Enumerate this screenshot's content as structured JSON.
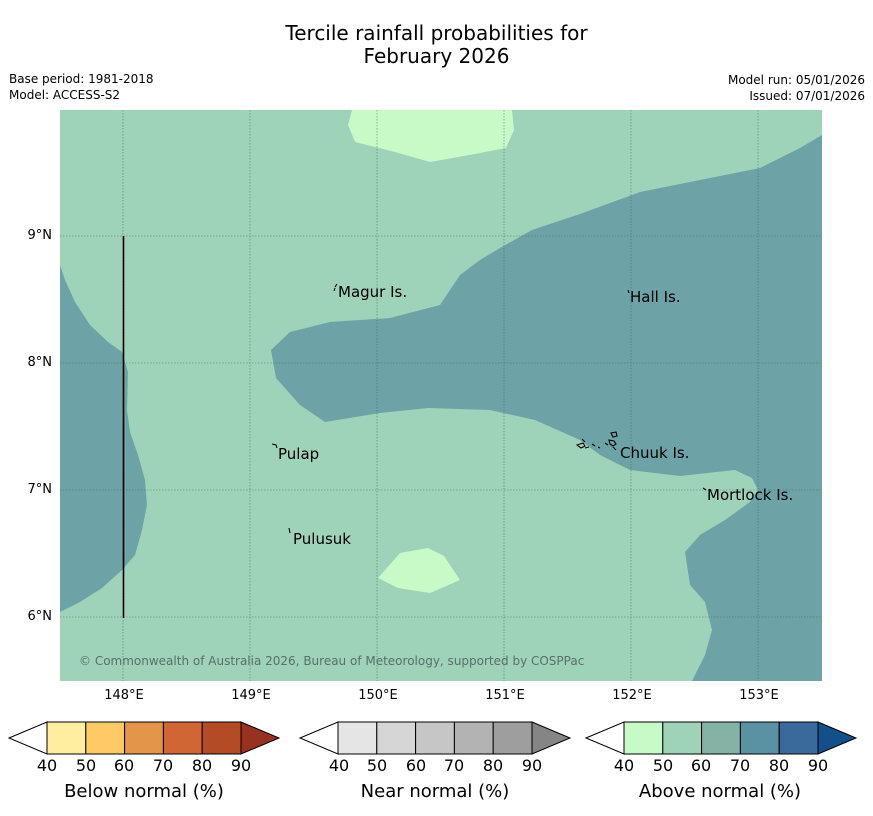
{
  "title": {
    "line1": "Tercile rainfall probabilities for",
    "line2": "February 2026"
  },
  "meta": {
    "base_period": "Base period: 1981-2018",
    "model": "Model: ACCESS-S2",
    "model_run": "Model run: 05/01/2026",
    "issued": "Issued: 07/01/2026"
  },
  "map": {
    "lat_labels": [
      "9°N",
      "8°N",
      "7°N",
      "6°N"
    ],
    "lon_labels": [
      "148°E",
      "149°E",
      "150°E",
      "151°E",
      "152°E",
      "153°E"
    ],
    "places": {
      "magur": "Magur Is.",
      "hall": "Hall Is.",
      "pulap": "Pulap",
      "chuuk": "Chuuk Is.",
      "mortlock": "Mortlock Is.",
      "pulusuk": "Pulusuk"
    },
    "copyright": "© Commonwealth of Australia 2026, Bureau of Meteorology, supported by COSPPac",
    "colors": {
      "above_50_60": "#9ed2b9",
      "above_70_80": "#6da3a6",
      "above_40_50": "#c8fac8"
    }
  },
  "legend": {
    "ticks": [
      "40",
      "50",
      "60",
      "70",
      "80",
      "90"
    ],
    "below": {
      "label": "Below normal (%)",
      "colors": [
        "#ffffff",
        "#ffeda0",
        "#feca65",
        "#e3954a",
        "#cf6634",
        "#b34c26",
        "#973220"
      ]
    },
    "near": {
      "label": "Near normal (%)",
      "colors": [
        "#ffffff",
        "#e5e5e5",
        "#d6d6d6",
        "#c6c6c6",
        "#b3b3b3",
        "#9e9e9e",
        "#858585"
      ]
    },
    "above": {
      "label": "Above normal (%)",
      "colors": [
        "#ffffff",
        "#c8fac8",
        "#9ed2b9",
        "#82b3a5",
        "#5a92a3",
        "#3a6a9c",
        "#134f88"
      ]
    }
  }
}
